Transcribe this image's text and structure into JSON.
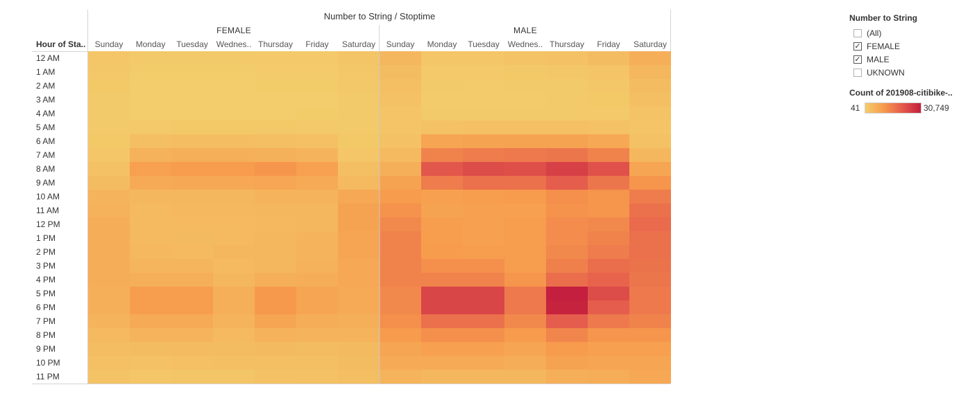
{
  "title": "Number to String / Stoptime",
  "groups": [
    "FEMALE",
    "MALE"
  ],
  "days": [
    "Sunday",
    "Monday",
    "Tuesday",
    "Wednes..",
    "Thursday",
    "Friday",
    "Saturday"
  ],
  "row_header": "Hour of Sta..",
  "hours": [
    "12 AM",
    "1 AM",
    "2 AM",
    "3 AM",
    "4 AM",
    "5 AM",
    "6 AM",
    "7 AM",
    "8 AM",
    "9 AM",
    "10 AM",
    "11 AM",
    "12 PM",
    "1 PM",
    "2 PM",
    "3 PM",
    "4 PM",
    "5 PM",
    "6 PM",
    "7 PM",
    "8 PM",
    "9 PM",
    "10 PM",
    "11 PM"
  ],
  "filter": {
    "title": "Number to String",
    "options": [
      {
        "label": "(All)",
        "checked": false
      },
      {
        "label": "FEMALE",
        "checked": true
      },
      {
        "label": "MALE",
        "checked": true
      },
      {
        "label": "UKNOWN",
        "checked": false
      }
    ]
  },
  "color_legend": {
    "title": "Count of 201908-citibike-..",
    "min_label": "41",
    "max_label": "30,749",
    "min": 41,
    "max": 30749,
    "colors": [
      "#f3cd6b",
      "#f79a4c",
      "#e45a4c",
      "#c41f3e"
    ]
  },
  "chart_data": {
    "type": "heatmap",
    "title": "Number to String / Stoptime",
    "x_groups": [
      "FEMALE",
      "MALE"
    ],
    "x_categories": [
      "Sunday",
      "Monday",
      "Tuesday",
      "Wednes..",
      "Thursday",
      "Friday",
      "Saturday"
    ],
    "y_categories": [
      "12 AM",
      "1 AM",
      "2 AM",
      "3 AM",
      "4 AM",
      "5 AM",
      "6 AM",
      "7 AM",
      "8 AM",
      "9 AM",
      "10 AM",
      "11 AM",
      "12 PM",
      "1 PM",
      "2 PM",
      "3 PM",
      "4 PM",
      "5 PM",
      "6 PM",
      "7 PM",
      "8 PM",
      "9 PM",
      "10 PM",
      "11 PM"
    ],
    "value_range": [
      41,
      30749
    ],
    "series": [
      {
        "name": "FEMALE",
        "values": [
          [
            1500,
            600,
            600,
            700,
            800,
            800,
            1600
          ],
          [
            1200,
            300,
            300,
            300,
            400,
            500,
            1300
          ],
          [
            900,
            200,
            200,
            200,
            250,
            300,
            1000
          ],
          [
            700,
            150,
            150,
            150,
            200,
            200,
            700
          ],
          [
            600,
            200,
            200,
            200,
            200,
            250,
            600
          ],
          [
            600,
            800,
            900,
            900,
            900,
            800,
            600
          ],
          [
            900,
            3000,
            3200,
            3300,
            3000,
            2700,
            900
          ],
          [
            1500,
            5500,
            6000,
            6000,
            5800,
            5000,
            1400
          ],
          [
            2500,
            9000,
            10000,
            10000,
            11000,
            9000,
            2800
          ],
          [
            3500,
            7000,
            7500,
            7500,
            7800,
            7000,
            4000
          ],
          [
            5000,
            4500,
            4500,
            4500,
            5000,
            5000,
            7500
          ],
          [
            5500,
            4000,
            4200,
            4200,
            4500,
            4500,
            8500
          ],
          [
            6500,
            4000,
            4000,
            4000,
            4300,
            4500,
            8500
          ],
          [
            6500,
            4000,
            3800,
            4000,
            4500,
            5000,
            8000
          ],
          [
            6500,
            4200,
            4000,
            4500,
            4500,
            5200,
            8000
          ],
          [
            6500,
            4800,
            4800,
            4000,
            4500,
            5500,
            7500
          ],
          [
            6500,
            6000,
            6000,
            4500,
            6000,
            6500,
            7500
          ],
          [
            6000,
            9500,
            9500,
            6000,
            10500,
            8000,
            7000
          ],
          [
            6000,
            9500,
            9500,
            6000,
            10500,
            8000,
            7000
          ],
          [
            5000,
            7000,
            7000,
            5000,
            8000,
            6500,
            6000
          ],
          [
            4000,
            5000,
            5000,
            4000,
            5500,
            5000,
            5000
          ],
          [
            3200,
            3500,
            3600,
            3500,
            3800,
            3500,
            3800
          ],
          [
            2700,
            2500,
            2600,
            2800,
            3000,
            3000,
            3500
          ],
          [
            2000,
            1500,
            1600,
            1700,
            2200,
            2500,
            3000
          ]
        ]
      },
      {
        "name": "MALE",
        "values": [
          [
            4500,
            1500,
            1500,
            2000,
            2500,
            3500,
            6000
          ],
          [
            3500,
            800,
            800,
            900,
            1200,
            1800,
            4500
          ],
          [
            2800,
            600,
            500,
            600,
            700,
            1200,
            3500
          ],
          [
            2200,
            500,
            400,
            500,
            600,
            900,
            2800
          ],
          [
            1800,
            700,
            600,
            600,
            600,
            800,
            2000
          ],
          [
            1800,
            2500,
            2600,
            2700,
            2700,
            2500,
            1800
          ],
          [
            2500,
            8000,
            8500,
            8500,
            8500,
            7500,
            2500
          ],
          [
            4000,
            14000,
            15000,
            15500,
            16000,
            14000,
            4500
          ],
          [
            6000,
            21000,
            23000,
            22500,
            25000,
            22000,
            8000
          ],
          [
            8500,
            15000,
            17000,
            17000,
            20000,
            16000,
            11000
          ],
          [
            10000,
            9000,
            9500,
            10000,
            12000,
            11000,
            15000
          ],
          [
            11500,
            8500,
            9000,
            9000,
            11500,
            11000,
            17000
          ],
          [
            13000,
            9500,
            9000,
            9500,
            12500,
            13000,
            18000
          ],
          [
            14000,
            9500,
            9000,
            9500,
            12500,
            14000,
            17000
          ],
          [
            14000,
            9800,
            9500,
            9500,
            13000,
            15000,
            17000
          ],
          [
            14000,
            12000,
            12000,
            9500,
            14500,
            17500,
            16500
          ],
          [
            14000,
            14000,
            14000,
            11000,
            17500,
            19000,
            16000
          ],
          [
            13000,
            24000,
            24000,
            15500,
            30749,
            23000,
            15500
          ],
          [
            13000,
            24000,
            24000,
            15500,
            30000,
            20000,
            15500
          ],
          [
            12000,
            17000,
            17000,
            13000,
            20000,
            15500,
            14000
          ],
          [
            10000,
            12000,
            12000,
            10000,
            13500,
            11000,
            11000
          ],
          [
            8000,
            9000,
            9000,
            8000,
            10000,
            9000,
            9000
          ],
          [
            7000,
            7000,
            7000,
            6500,
            8500,
            8000,
            8000
          ],
          [
            5000,
            4500,
            4500,
            4500,
            6000,
            6500,
            7500
          ]
        ]
      }
    ]
  }
}
